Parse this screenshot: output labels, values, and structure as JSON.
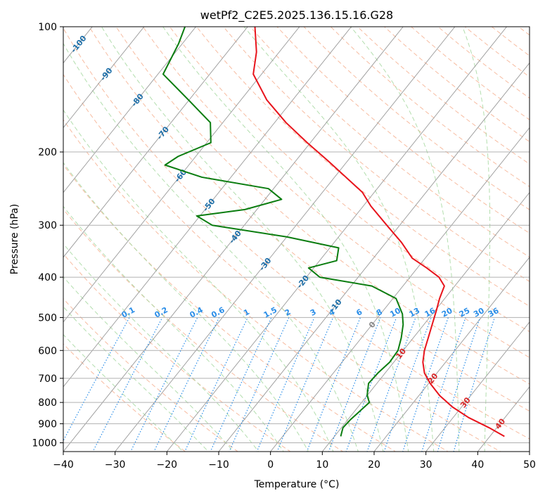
{
  "chart_data": {
    "type": "line",
    "subtype": "skew-t log-p",
    "title": "wetPf2_C2E5.2025.136.15.16.G28",
    "xlabel": "Temperature (°C)",
    "ylabel": "Pressure (hPa)",
    "xlim": [
      -40,
      50
    ],
    "ylim": [
      1050,
      100
    ],
    "y_scale": "log",
    "grid": true,
    "x_ticks": [
      "−40",
      "−30",
      "−20",
      "−10",
      "0",
      "10",
      "20",
      "30",
      "40",
      "50"
    ],
    "y_ticks": [
      "100",
      "200",
      "300",
      "400",
      "500",
      "600",
      "700",
      "800",
      "900",
      "1000"
    ],
    "isotherm_labels": [
      "-100",
      "-90",
      "-80",
      "-70",
      "-60",
      "-50",
      "-40",
      "-30",
      "-20",
      "-10",
      "0",
      "10",
      "20",
      "30",
      "40"
    ],
    "mixing_ratio_labels": [
      "0.1",
      "0.2",
      "0.4",
      "0.6",
      "1",
      "1.5",
      "2",
      "3",
      "4",
      "6",
      "8",
      "10",
      "13",
      "16",
      "20",
      "25",
      "30",
      "36"
    ],
    "colors": {
      "temperature": "#e8141c",
      "dewpoint": "#0b7d10",
      "isotherm": "#999999",
      "dry_adiabat": "#f4a582",
      "moist_adiabat": "#a6d8a0",
      "mixing_ratio": "#2b8ee8",
      "isotherm_label_cold": "#1f6fa8",
      "isotherm_label_zero": "#888888",
      "isotherm_label_warm": "#d62728"
    },
    "series": [
      {
        "name": "Temperature",
        "points": [
          {
            "p": 965,
            "t": 42.8
          },
          {
            "p": 920,
            "t": 38.5
          },
          {
            "p": 870,
            "t": 33.0
          },
          {
            "p": 820,
            "t": 28.2
          },
          {
            "p": 770,
            "t": 24.0
          },
          {
            "p": 720,
            "t": 20.3
          },
          {
            "p": 680,
            "t": 17.6
          },
          {
            "p": 640,
            "t": 15.6
          },
          {
            "p": 600,
            "t": 14.1
          },
          {
            "p": 560,
            "t": 12.9
          },
          {
            "p": 520,
            "t": 11.6
          },
          {
            "p": 480,
            "t": 10.2
          },
          {
            "p": 450,
            "t": 9.0
          },
          {
            "p": 420,
            "t": 8.0
          },
          {
            "p": 400,
            "t": 5.6
          },
          {
            "p": 380,
            "t": 1.8
          },
          {
            "p": 360,
            "t": -2.5
          },
          {
            "p": 330,
            "t": -7.0
          },
          {
            "p": 300,
            "t": -12.5
          },
          {
            "p": 270,
            "t": -18.5
          },
          {
            "p": 250,
            "t": -22.3
          },
          {
            "p": 230,
            "t": -27.8
          },
          {
            "p": 210,
            "t": -33.8
          },
          {
            "p": 190,
            "t": -40.6
          },
          {
            "p": 170,
            "t": -47.8
          },
          {
            "p": 150,
            "t": -55.0
          },
          {
            "p": 130,
            "t": -61.6
          },
          {
            "p": 115,
            "t": -64.4
          },
          {
            "p": 100,
            "t": -68.6
          }
        ]
      },
      {
        "name": "Dewpoint",
        "points": [
          {
            "p": 965,
            "t": 11.2
          },
          {
            "p": 920,
            "t": 10.3
          },
          {
            "p": 880,
            "t": 10.5
          },
          {
            "p": 840,
            "t": 11.0
          },
          {
            "p": 800,
            "t": 11.5
          },
          {
            "p": 770,
            "t": 10.0
          },
          {
            "p": 720,
            "t": 8.4
          },
          {
            "p": 680,
            "t": 8.6
          },
          {
            "p": 640,
            "t": 9.2
          },
          {
            "p": 600,
            "t": 9.0
          },
          {
            "p": 560,
            "t": 7.7
          },
          {
            "p": 520,
            "t": 6.0
          },
          {
            "p": 490,
            "t": 4.2
          },
          {
            "p": 450,
            "t": 0.6
          },
          {
            "p": 420,
            "t": -6.0
          },
          {
            "p": 400,
            "t": -17.4
          },
          {
            "p": 380,
            "t": -21.0
          },
          {
            "p": 365,
            "t": -16.7
          },
          {
            "p": 340,
            "t": -18.3
          },
          {
            "p": 320,
            "t": -30.0
          },
          {
            "p": 300,
            "t": -46.2
          },
          {
            "p": 285,
            "t": -50.6
          },
          {
            "p": 275,
            "t": -42.3
          },
          {
            "p": 260,
            "t": -36.8
          },
          {
            "p": 245,
            "t": -41.0
          },
          {
            "p": 230,
            "t": -55.6
          },
          {
            "p": 215,
            "t": -64.6
          },
          {
            "p": 205,
            "t": -63.4
          },
          {
            "p": 190,
            "t": -59.2
          },
          {
            "p": 170,
            "t": -62.4
          },
          {
            "p": 150,
            "t": -70.1
          },
          {
            "p": 130,
            "t": -79.0
          },
          {
            "p": 110,
            "t": -80.7
          },
          {
            "p": 100,
            "t": -82.1
          }
        ]
      }
    ]
  }
}
